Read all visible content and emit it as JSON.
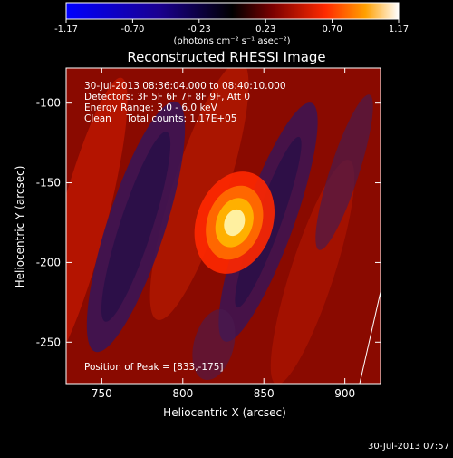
{
  "chart_data": {
    "type": "heatmap",
    "title": "Reconstructed RHESSI Image",
    "xlabel": "Heliocentric X (arcsec)",
    "ylabel": "Heliocentric Y (arcsec)",
    "xlim": [
      728,
      922
    ],
    "ylim": [
      -276,
      -78
    ],
    "xticks": [
      750,
      800,
      850,
      900
    ],
    "yticks": [
      -100,
      -150,
      -200,
      -250
    ],
    "colorbar": {
      "min": -1.17,
      "max": 1.17,
      "ticks": [
        "-1.17",
        "-0.70",
        "-0.23",
        "0.23",
        "0.70",
        "1.17"
      ],
      "units_label": "(photons cm⁻² s⁻¹ asec⁻²)"
    },
    "peak": {
      "x": 833,
      "y": -175
    },
    "annotations": [
      "30-Jul-2013 08:36:04.000 to 08:40:10.000",
      "Detectors: 3F 5F 6F 7F 8F 9F, Att 0",
      "Energy Range: 3.0 - 6.0 keV",
      "Clean     Total counts: 1.17E+05"
    ],
    "peak_label": "Position of Peak = [833,-175]",
    "grid": false,
    "limb_line": true
  },
  "footer": {
    "timestamp": "30-Jul-2013 07:57"
  }
}
